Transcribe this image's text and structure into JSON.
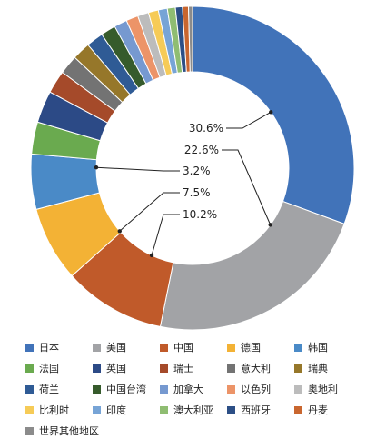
{
  "chart_data": {
    "type": "pie",
    "donut": true,
    "categories": [
      "日本",
      "美国",
      "中国",
      "德国",
      "韩国",
      "法国",
      "英国",
      "瑞士",
      "意大利",
      "瑞典",
      "荷兰",
      "中国台湾",
      "加拿大",
      "以色列",
      "奥地利",
      "比利时",
      "印度",
      "澳大利亚",
      "西班牙",
      "丹麦",
      "世界其他地区"
    ],
    "values": [
      30.6,
      22.6,
      10.2,
      7.5,
      5.5,
      3.2,
      3.2,
      2.3,
      1.9,
      1.8,
      1.7,
      1.5,
      1.3,
      1.2,
      1.1,
      1.0,
      0.9,
      0.8,
      0.7,
      0.6,
      0.4
    ],
    "colors": [
      "#4173b9",
      "#a2a3a6",
      "#c05a2a",
      "#f3b235",
      "#4a8ac7",
      "#6aaa4f",
      "#2c4a86",
      "#a54a2a",
      "#737373",
      "#96772a",
      "#2f5b95",
      "#365b2c",
      "#7699d0",
      "#ec9468",
      "#bcbcbc",
      "#f6cb57",
      "#77a4d6",
      "#8fbd72",
      "#2c4f86",
      "#c9662f",
      "#8b8b8b"
    ],
    "data_labels": [
      {
        "index": 0,
        "text": "30.6%"
      },
      {
        "index": 1,
        "text": "22.6%"
      },
      {
        "index": 5,
        "text": "3.2%"
      },
      {
        "index": 3,
        "text": "7.5%"
      },
      {
        "index": 2,
        "text": "10.2%"
      }
    ],
    "legend_position": "bottom"
  }
}
